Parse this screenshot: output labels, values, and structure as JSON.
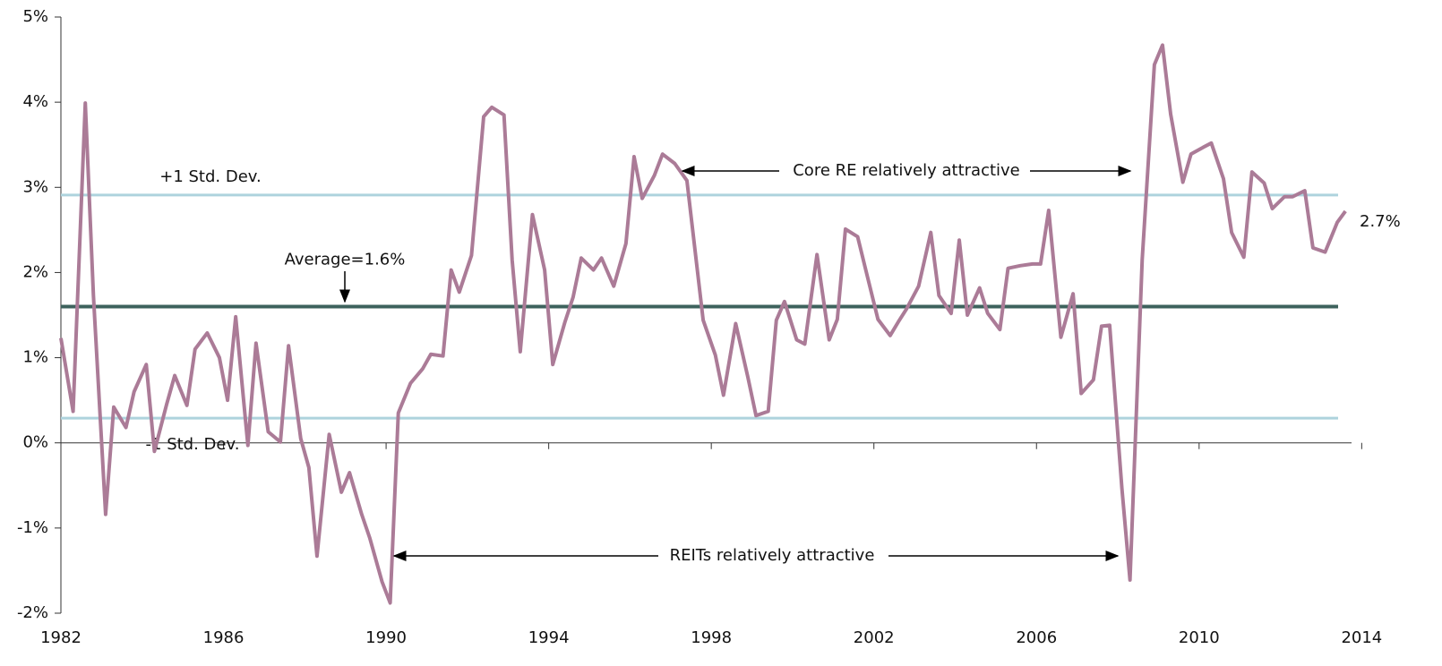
{
  "chart_data": {
    "type": "line",
    "x": [
      1982.0,
      1982.3,
      1982.6,
      1982.8,
      1983.1,
      1983.3,
      1983.6,
      1983.8,
      1984.1,
      1984.3,
      1984.6,
      1984.8,
      1985.1,
      1985.3,
      1985.6,
      1985.9,
      1986.1,
      1986.3,
      1986.6,
      1986.8,
      1987.1,
      1987.4,
      1987.6,
      1987.9,
      1988.1,
      1988.3,
      1988.6,
      1988.9,
      1989.1,
      1989.4,
      1989.6,
      1989.9,
      1990.1,
      1990.3,
      1990.6,
      1990.9,
      1991.1,
      1991.4,
      1991.6,
      1991.8,
      1992.1,
      1992.4,
      1992.6,
      1992.9,
      1993.1,
      1993.3,
      1993.6,
      1993.9,
      1994.1,
      1994.4,
      1994.6,
      1994.8,
      1995.1,
      1995.3,
      1995.6,
      1995.9,
      1996.1,
      1996.3,
      1996.6,
      1996.8,
      1997.1,
      1997.4,
      1997.6,
      1997.8,
      1998.1,
      1998.3,
      1998.6,
      1998.9,
      1999.1,
      1999.4,
      1999.6,
      1999.8,
      2000.1,
      2000.3,
      2000.6,
      2000.9,
      2001.1,
      2001.3,
      2001.6,
      2001.8,
      2002.1,
      2002.4,
      2002.6,
      2002.8,
      2003.1,
      2003.4,
      2003.6,
      2003.9,
      2004.1,
      2004.3,
      2004.6,
      2004.8,
      2005.1,
      2005.3,
      2005.6,
      2005.9,
      2006.1,
      2006.3,
      2006.6,
      2006.9,
      2007.1,
      2007.4,
      2007.6,
      2007.8,
      2008.1,
      2008.3,
      2008.6,
      2008.9,
      2009.1,
      2009.3,
      2009.6,
      2009.8,
      2010.1,
      2010.3,
      2010.6,
      2010.8,
      2011.1,
      2011.3,
      2011.6,
      2011.8,
      2012.1,
      2012.3,
      2012.6,
      2012.8,
      2013.1,
      2013.4,
      2013.6
    ],
    "series": [
      {
        "color": "#ab7b97",
        "values": [
          1.23,
          0.37,
          3.99,
          1.73,
          -0.84,
          0.42,
          0.18,
          0.6,
          0.92,
          -0.1,
          0.45,
          0.79,
          0.44,
          1.1,
          1.29,
          1.0,
          0.5,
          1.48,
          -0.03,
          1.17,
          0.13,
          0.01,
          1.14,
          0.05,
          -0.29,
          -1.33,
          0.1,
          -0.58,
          -0.35,
          -0.84,
          -1.12,
          -1.63,
          -1.88,
          0.35,
          0.7,
          0.87,
          1.04,
          1.02,
          2.03,
          1.77,
          2.2,
          3.83,
          3.94,
          3.85,
          2.15,
          1.07,
          2.68,
          2.03,
          0.92,
          1.42,
          1.71,
          2.17,
          2.03,
          2.17,
          1.84,
          2.34,
          3.36,
          2.87,
          3.14,
          3.39,
          3.28,
          3.08,
          2.26,
          1.44,
          1.03,
          0.56,
          1.4,
          0.77,
          0.32,
          0.37,
          1.44,
          1.66,
          1.21,
          1.16,
          2.21,
          1.21,
          1.45,
          2.51,
          2.42,
          2.03,
          1.45,
          1.26,
          1.42,
          1.57,
          1.84,
          2.47,
          1.73,
          1.52,
          2.38,
          1.5,
          1.82,
          1.52,
          1.33,
          2.05,
          2.08,
          2.1,
          2.1,
          2.73,
          1.24,
          1.75,
          0.58,
          0.74,
          1.37,
          1.38,
          -0.53,
          -1.61,
          2.15,
          4.44,
          4.67,
          3.86,
          3.06,
          3.39,
          3.47,
          3.52,
          3.1,
          2.47,
          2.18,
          3.18,
          3.05,
          2.75,
          2.89,
          2.89,
          2.96,
          2.29,
          2.24,
          2.59,
          2.72
        ]
      }
    ],
    "end_label": "2.7%",
    "reference_lines": [
      {
        "label": "+1 Std. Dev.",
        "value": 2.91,
        "color": "#aed3dd"
      },
      {
        "label": "Average=1.6%",
        "value": 1.6,
        "color": "#3d625d"
      },
      {
        "label": "-1 Std. Dev.",
        "value": 0.29,
        "color": "#aed3dd"
      }
    ],
    "annotations": [
      "Core RE relatively attractive",
      "REITs relatively attractive"
    ],
    "xlim": [
      1982,
      2013.75
    ],
    "xticks": [
      1982,
      1986,
      1990,
      1994,
      1998,
      2002,
      2006,
      2010,
      2014
    ],
    "ylim": [
      -2,
      5
    ],
    "yticks": [
      {
        "value": -2,
        "label": "-2%"
      },
      {
        "value": -1,
        "label": "-1%"
      },
      {
        "value": 0,
        "label": "0%"
      },
      {
        "value": 1,
        "label": "1%"
      },
      {
        "value": 2,
        "label": "2%"
      },
      {
        "value": 3,
        "label": "3%"
      },
      {
        "value": 4,
        "label": "4%"
      },
      {
        "value": 5,
        "label": "5%"
      }
    ]
  }
}
